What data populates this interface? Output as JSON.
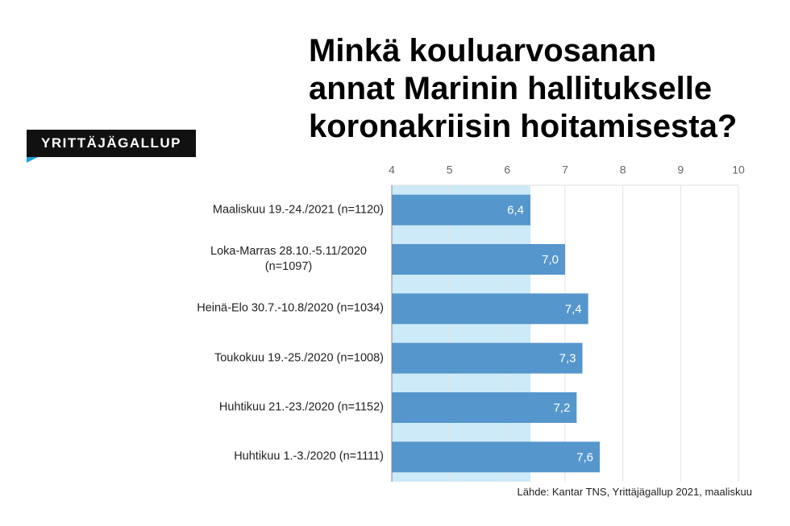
{
  "logo": "YRITTÄJÄGALLUP",
  "chart_data": {
    "type": "bar",
    "orientation": "horizontal",
    "title": "Minkä kouluarvosanan annat Marinin hallitukselle koronakriisin hoitamisesta?",
    "categories": [
      "Maaliskuu 19.-24./2021 (n=1120)",
      "Loka-Marras 28.10.-5.11/2020 (n=1097)",
      "Heinä-Elo 30.7.-10.8/2020 (n=1034)",
      "Toukokuu 19.-25./2020 (n=1008)",
      "Huhtikuu 21.-23./2020 (n=1152)",
      "Huhtikuu 1.-3./2020 (n=1111)"
    ],
    "values": [
      6.4,
      7.0,
      7.4,
      7.3,
      7.2,
      7.6
    ],
    "value_labels": [
      "6,4",
      "7,0",
      "7,4",
      "7,3",
      "7,2",
      "7,6"
    ],
    "color": "#5596cc",
    "highlight_color": "#cdeaf8",
    "xlim": [
      4,
      10
    ],
    "xticks": [
      4,
      5,
      6,
      7,
      8,
      9,
      10
    ],
    "grid": true,
    "source": "Lähde: Kantar TNS, Yrittäjägallup 2021, maaliskuu"
  }
}
